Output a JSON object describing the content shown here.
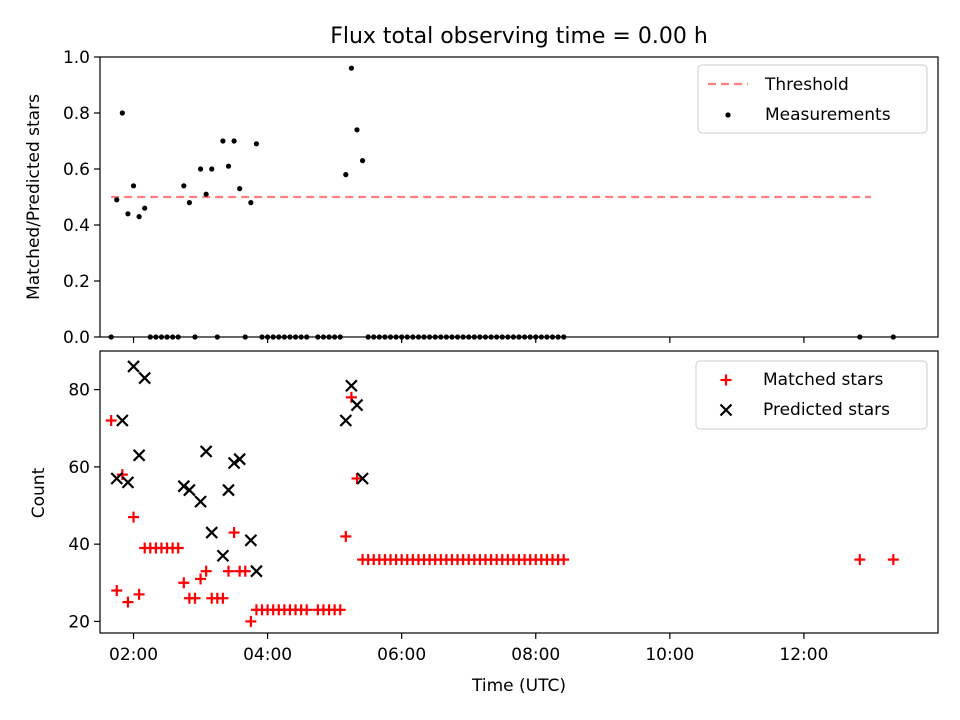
{
  "title": "Flux total observing time = 0.00 h",
  "colors": {
    "threshold": "#ff7f7f",
    "measurement": "#000000",
    "matched": "#ff0000",
    "predicted": "#000000"
  },
  "chart_data": [
    {
      "type": "scatter",
      "ylabel": "Matched/Predicted stars",
      "xlim": [
        "01:30",
        "14:00"
      ],
      "ylim": [
        0,
        1.0
      ],
      "y_ticks": [
        "0.0",
        "0.2",
        "0.4",
        "0.6",
        "0.8",
        "1.0"
      ],
      "legend_position": "top-right",
      "legend": [
        {
          "label": "Threshold",
          "type": "dashed-line"
        },
        {
          "label": "Measurements",
          "type": "dot"
        }
      ],
      "threshold": {
        "y": 0.5,
        "x": [
          "01:40",
          "13:00"
        ]
      },
      "series": [
        {
          "name": "Measurements",
          "points": [
            [
              "01:40",
              0.0
            ],
            [
              "01:45",
              0.49
            ],
            [
              "01:50",
              0.8
            ],
            [
              "01:55",
              0.44
            ],
            [
              "02:00",
              0.54
            ],
            [
              "02:05",
              0.43
            ],
            [
              "02:10",
              0.46
            ],
            [
              "02:15",
              0.0
            ],
            [
              "02:20",
              0.0
            ],
            [
              "02:25",
              0.0
            ],
            [
              "02:30",
              0.0
            ],
            [
              "02:35",
              0.0
            ],
            [
              "02:40",
              0.0
            ],
            [
              "02:45",
              0.54
            ],
            [
              "02:50",
              0.48
            ],
            [
              "02:55",
              0.0
            ],
            [
              "03:00",
              0.6
            ],
            [
              "03:05",
              0.51
            ],
            [
              "03:10",
              0.6
            ],
            [
              "03:15",
              0.0
            ],
            [
              "03:20",
              0.7
            ],
            [
              "03:25",
              0.61
            ],
            [
              "03:30",
              0.7
            ],
            [
              "03:35",
              0.53
            ],
            [
              "03:40",
              0.0
            ],
            [
              "03:45",
              0.48
            ],
            [
              "03:50",
              0.69
            ],
            [
              "03:55",
              0.0
            ],
            [
              "04:00",
              0.0
            ],
            [
              "04:05",
              0.0
            ],
            [
              "04:10",
              0.0
            ],
            [
              "04:15",
              0.0
            ],
            [
              "04:20",
              0.0
            ],
            [
              "04:25",
              0.0
            ],
            [
              "04:30",
              0.0
            ],
            [
              "04:35",
              0.0
            ],
            [
              "04:45",
              0.0
            ],
            [
              "04:50",
              0.0
            ],
            [
              "04:55",
              0.0
            ],
            [
              "05:00",
              0.0
            ],
            [
              "05:05",
              0.0
            ],
            [
              "05:10",
              0.58
            ],
            [
              "05:15",
              0.96
            ],
            [
              "05:20",
              0.74
            ],
            [
              "05:25",
              0.63
            ],
            [
              "05:30",
              0.0
            ],
            [
              "05:35",
              0.0
            ],
            [
              "05:40",
              0.0
            ],
            [
              "05:45",
              0.0
            ],
            [
              "05:50",
              0.0
            ],
            [
              "05:55",
              0.0
            ],
            [
              "06:00",
              0.0
            ],
            [
              "06:05",
              0.0
            ],
            [
              "06:10",
              0.0
            ],
            [
              "06:15",
              0.0
            ],
            [
              "06:20",
              0.0
            ],
            [
              "06:25",
              0.0
            ],
            [
              "06:30",
              0.0
            ],
            [
              "06:35",
              0.0
            ],
            [
              "06:40",
              0.0
            ],
            [
              "06:45",
              0.0
            ],
            [
              "06:50",
              0.0
            ],
            [
              "06:55",
              0.0
            ],
            [
              "07:00",
              0.0
            ],
            [
              "07:05",
              0.0
            ],
            [
              "07:10",
              0.0
            ],
            [
              "07:15",
              0.0
            ],
            [
              "07:20",
              0.0
            ],
            [
              "07:25",
              0.0
            ],
            [
              "07:30",
              0.0
            ],
            [
              "07:35",
              0.0
            ],
            [
              "07:40",
              0.0
            ],
            [
              "07:45",
              0.0
            ],
            [
              "07:50",
              0.0
            ],
            [
              "07:55",
              0.0
            ],
            [
              "08:00",
              0.0
            ],
            [
              "08:05",
              0.0
            ],
            [
              "08:10",
              0.0
            ],
            [
              "08:15",
              0.0
            ],
            [
              "08:20",
              0.0
            ],
            [
              "08:25",
              0.0
            ],
            [
              "12:50",
              0.0
            ],
            [
              "13:20",
              0.0
            ]
          ]
        }
      ]
    },
    {
      "type": "scatter",
      "xlabel": "Time (UTC)",
      "ylabel": "Count",
      "xlim": [
        "01:30",
        "14:00"
      ],
      "ylim": [
        17,
        90
      ],
      "x_ticks": [
        "02:00",
        "04:00",
        "06:00",
        "08:00",
        "10:00",
        "12:00"
      ],
      "y_ticks": [
        "20",
        "40",
        "60",
        "80"
      ],
      "legend_position": "top-right",
      "legend": [
        {
          "label": "Matched stars",
          "type": "plus"
        },
        {
          "label": "Predicted stars",
          "type": "cross"
        }
      ],
      "series": [
        {
          "name": "Matched stars",
          "points": [
            [
              "01:40",
              72
            ],
            [
              "01:45",
              28
            ],
            [
              "01:50",
              58
            ],
            [
              "01:55",
              25
            ],
            [
              "02:00",
              47
            ],
            [
              "02:05",
              27
            ],
            [
              "02:10",
              39
            ],
            [
              "02:15",
              39
            ],
            [
              "02:20",
              39
            ],
            [
              "02:25",
              39
            ],
            [
              "02:30",
              39
            ],
            [
              "02:35",
              39
            ],
            [
              "02:40",
              39
            ],
            [
              "02:45",
              30
            ],
            [
              "02:50",
              26
            ],
            [
              "02:55",
              26
            ],
            [
              "03:00",
              31
            ],
            [
              "03:05",
              33
            ],
            [
              "03:10",
              26
            ],
            [
              "03:15",
              26
            ],
            [
              "03:20",
              26
            ],
            [
              "03:25",
              33
            ],
            [
              "03:30",
              43
            ],
            [
              "03:35",
              33
            ],
            [
              "03:40",
              33
            ],
            [
              "03:45",
              20
            ],
            [
              "03:50",
              23
            ],
            [
              "03:55",
              23
            ],
            [
              "04:00",
              23
            ],
            [
              "04:05",
              23
            ],
            [
              "04:10",
              23
            ],
            [
              "04:15",
              23
            ],
            [
              "04:20",
              23
            ],
            [
              "04:25",
              23
            ],
            [
              "04:30",
              23
            ],
            [
              "04:35",
              23
            ],
            [
              "04:45",
              23
            ],
            [
              "04:50",
              23
            ],
            [
              "04:55",
              23
            ],
            [
              "05:00",
              23
            ],
            [
              "05:05",
              23
            ],
            [
              "05:10",
              42
            ],
            [
              "05:15",
              78
            ],
            [
              "05:20",
              57
            ],
            [
              "05:25",
              36
            ],
            [
              "05:30",
              36
            ],
            [
              "05:35",
              36
            ],
            [
              "05:40",
              36
            ],
            [
              "05:45",
              36
            ],
            [
              "05:50",
              36
            ],
            [
              "05:55",
              36
            ],
            [
              "06:00",
              36
            ],
            [
              "06:05",
              36
            ],
            [
              "06:10",
              36
            ],
            [
              "06:15",
              36
            ],
            [
              "06:20",
              36
            ],
            [
              "06:25",
              36
            ],
            [
              "06:30",
              36
            ],
            [
              "06:35",
              36
            ],
            [
              "06:40",
              36
            ],
            [
              "06:45",
              36
            ],
            [
              "06:50",
              36
            ],
            [
              "06:55",
              36
            ],
            [
              "07:00",
              36
            ],
            [
              "07:05",
              36
            ],
            [
              "07:10",
              36
            ],
            [
              "07:15",
              36
            ],
            [
              "07:20",
              36
            ],
            [
              "07:25",
              36
            ],
            [
              "07:30",
              36
            ],
            [
              "07:35",
              36
            ],
            [
              "07:40",
              36
            ],
            [
              "07:45",
              36
            ],
            [
              "07:50",
              36
            ],
            [
              "07:55",
              36
            ],
            [
              "08:00",
              36
            ],
            [
              "08:05",
              36
            ],
            [
              "08:10",
              36
            ],
            [
              "08:15",
              36
            ],
            [
              "08:20",
              36
            ],
            [
              "08:25",
              36
            ],
            [
              "12:50",
              36
            ],
            [
              "13:20",
              36
            ]
          ]
        },
        {
          "name": "Predicted stars",
          "points": [
            [
              "01:45",
              57
            ],
            [
              "01:50",
              72
            ],
            [
              "01:55",
              56
            ],
            [
              "02:00",
              86
            ],
            [
              "02:05",
              63
            ],
            [
              "02:10",
              83
            ],
            [
              "02:45",
              55
            ],
            [
              "02:50",
              54
            ],
            [
              "03:00",
              51
            ],
            [
              "03:05",
              64
            ],
            [
              "03:10",
              43
            ],
            [
              "03:20",
              37
            ],
            [
              "03:25",
              54
            ],
            [
              "03:30",
              61
            ],
            [
              "03:35",
              62
            ],
            [
              "03:45",
              41
            ],
            [
              "03:50",
              33
            ],
            [
              "05:10",
              72
            ],
            [
              "05:15",
              81
            ],
            [
              "05:20",
              76
            ],
            [
              "05:25",
              57
            ]
          ]
        }
      ]
    }
  ]
}
